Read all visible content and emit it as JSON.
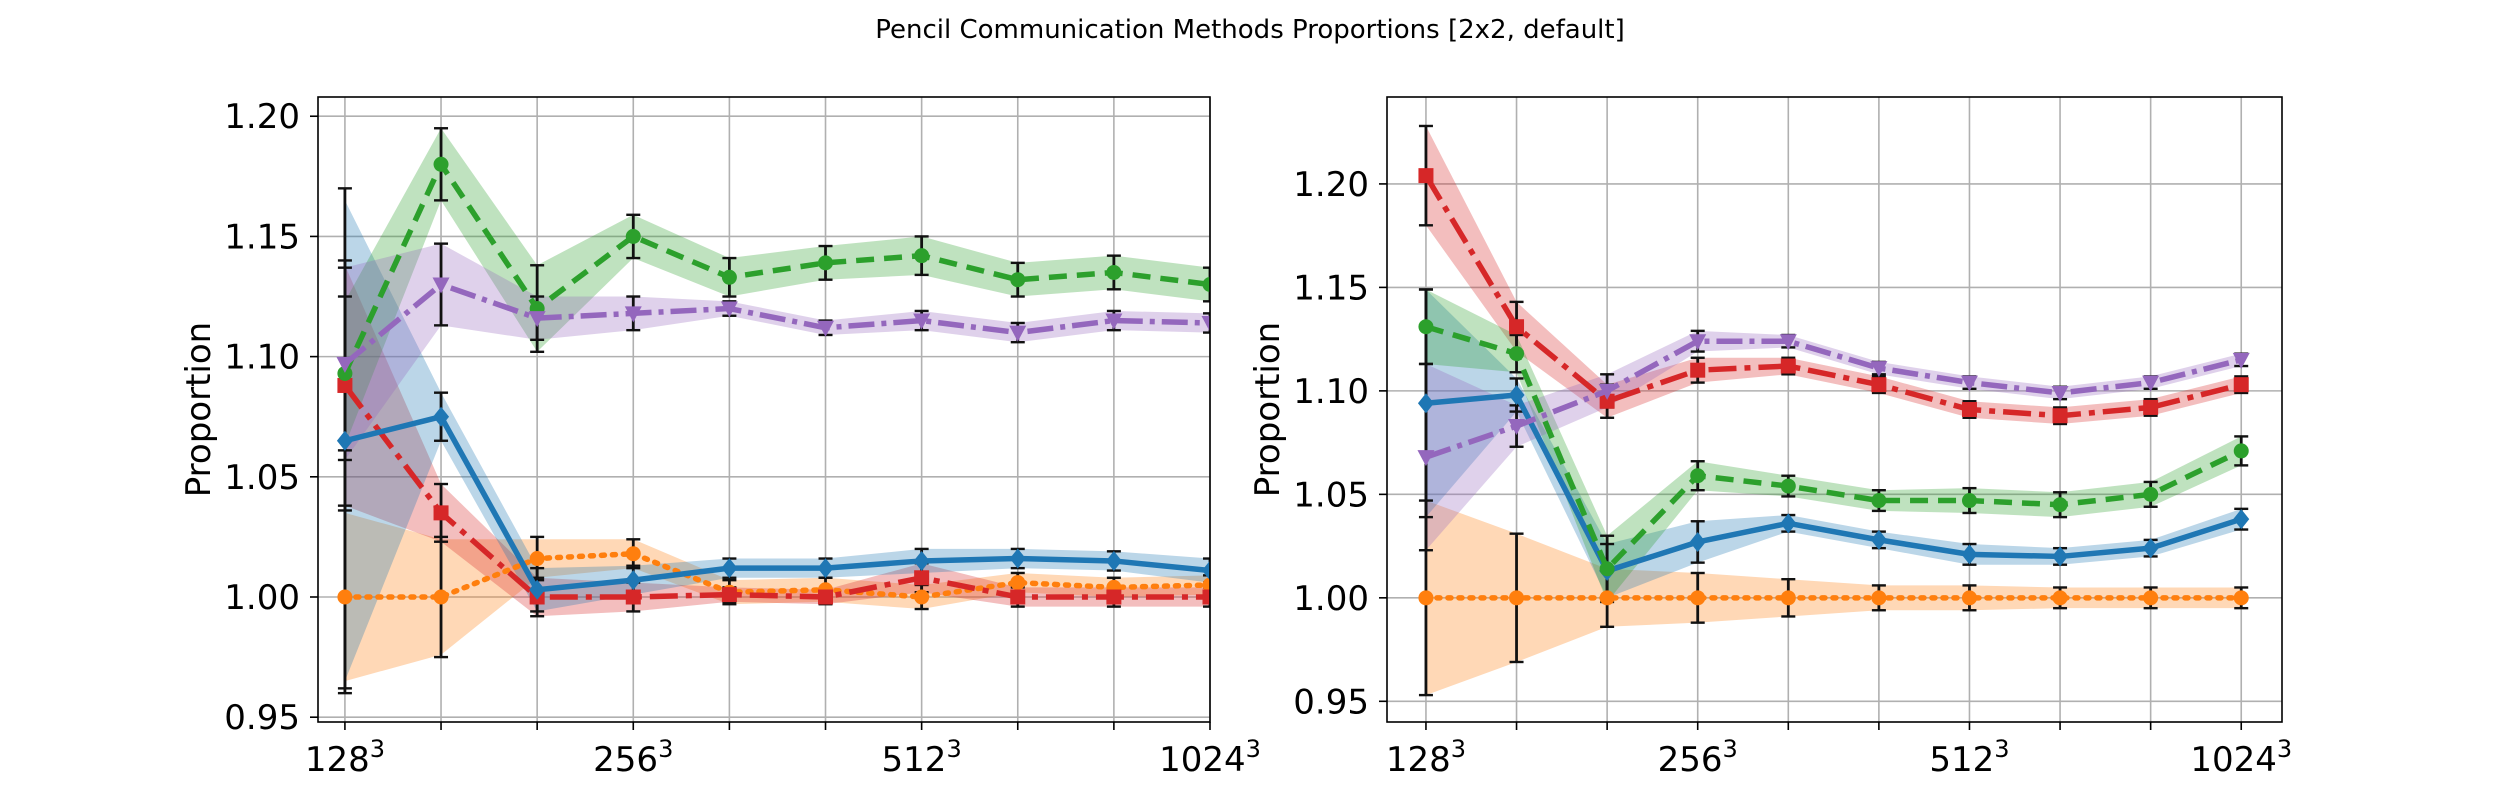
{
  "figure": {
    "title": "Pencil Communication Methods Proportions [2x2, default]"
  },
  "chart_data": [
    {
      "type": "line",
      "ylabel": "Proportion",
      "x": [
        1,
        2,
        3,
        4,
        5,
        6,
        7,
        8,
        9,
        10
      ],
      "xticks": [
        {
          "x": 1,
          "base": "128",
          "exp": "3"
        },
        {
          "x": 4,
          "base": "256",
          "exp": "3"
        },
        {
          "x": 7,
          "base": "512",
          "exp": "3"
        },
        {
          "x": 10,
          "base": "1024",
          "exp": "3"
        }
      ],
      "xlim": [
        0.72,
        10.0
      ],
      "ylim": [
        0.948,
        1.208
      ],
      "yticks": [
        0.95,
        1.0,
        1.05,
        1.1,
        1.15,
        1.2
      ],
      "ytick_labels": [
        "0.95",
        "1.00",
        "1.05",
        "1.10",
        "1.15",
        "1.20"
      ],
      "grid": true,
      "series": [
        {
          "color": "#ff7f0e",
          "dash": "3,8",
          "marker": "circle",
          "values": [
            1.0,
            1.0,
            1.016,
            1.018,
            1.002,
            1.003,
            1.0,
            1.006,
            1.004,
            1.005
          ],
          "band": [
            0.035,
            0.024,
            0.008,
            0.006,
            0.005,
            0.005,
            0.005,
            0.004,
            0.004,
            0.004
          ],
          "err": [
            0.038,
            0.025,
            0.009,
            0.006,
            0.005,
            0.005,
            0.005,
            0.004,
            0.004,
            0.004
          ]
        },
        {
          "color": "#d62728",
          "dash": "28,8,6,8",
          "marker": "square",
          "values": [
            1.088,
            1.035,
            1.0,
            1.0,
            1.001,
            1.0,
            1.008,
            1.0,
            1.0,
            1.0
          ],
          "band": [
            0.05,
            0.012,
            0.008,
            0.006,
            0.003,
            0.003,
            0.006,
            0.004,
            0.004,
            0.004
          ],
          "err": [
            0.052,
            0.012,
            0.008,
            0.006,
            0.003,
            0.003,
            0.006,
            0.004,
            0.004,
            0.004
          ]
        },
        {
          "color": "#1f77b4",
          "dash": "",
          "marker": "diamond",
          "values": [
            1.065,
            1.075,
            1.003,
            1.007,
            1.012,
            1.012,
            1.015,
            1.016,
            1.015,
            1.011
          ],
          "band": [
            0.1,
            0.01,
            0.009,
            0.006,
            0.004,
            0.004,
            0.005,
            0.004,
            0.004,
            0.005
          ],
          "err": [
            0.105,
            0.01,
            0.009,
            0.006,
            0.004,
            0.004,
            0.005,
            0.004,
            0.004,
            0.005
          ]
        },
        {
          "color": "#2ca02c",
          "dash": "18,10",
          "marker": "circle",
          "values": [
            1.093,
            1.18,
            1.12,
            1.15,
            1.133,
            1.139,
            1.142,
            1.132,
            1.135,
            1.13
          ],
          "band": [
            0.03,
            0.015,
            0.018,
            0.009,
            0.008,
            0.007,
            0.008,
            0.007,
            0.007,
            0.007
          ],
          "err": [
            0.032,
            0.015,
            0.018,
            0.009,
            0.008,
            0.007,
            0.008,
            0.007,
            0.007,
            0.007
          ]
        },
        {
          "color": "#9467bd",
          "dash": "26,7,5,7",
          "marker": "tri-down",
          "values": [
            1.097,
            1.13,
            1.116,
            1.118,
            1.12,
            1.112,
            1.115,
            1.11,
            1.115,
            1.114
          ],
          "band": [
            0.04,
            0.017,
            0.009,
            0.007,
            0.003,
            0.003,
            0.004,
            0.004,
            0.004,
            0.004
          ],
          "err": [
            0.04,
            0.017,
            0.009,
            0.007,
            0.003,
            0.003,
            0.004,
            0.004,
            0.004,
            0.004
          ]
        }
      ]
    },
    {
      "type": "line",
      "ylabel": "Proportion",
      "x": [
        1,
        2,
        3,
        4,
        5,
        6,
        7,
        8,
        9,
        10
      ],
      "xticks": [
        {
          "x": 1,
          "base": "128",
          "exp": "3"
        },
        {
          "x": 4,
          "base": "256",
          "exp": "3"
        },
        {
          "x": 7,
          "base": "512",
          "exp": "3"
        },
        {
          "x": 10,
          "base": "1024",
          "exp": "3"
        }
      ],
      "xlim": [
        0.57,
        10.45
      ],
      "ylim": [
        0.94,
        1.242
      ],
      "yticks": [
        0.95,
        1.0,
        1.05,
        1.1,
        1.15,
        1.2
      ],
      "ytick_labels": [
        "0.95",
        "1.00",
        "1.05",
        "1.10",
        "1.15",
        "1.20"
      ],
      "grid": true,
      "series": [
        {
          "color": "#ff7f0e",
          "dash": "3,8",
          "marker": "circle",
          "values": [
            1.0,
            1.0,
            1.0,
            1.0,
            1.0,
            1.0,
            1.0,
            1.0,
            1.0,
            1.0
          ],
          "band": [
            0.047,
            0.031,
            0.014,
            0.012,
            0.009,
            0.006,
            0.006,
            0.005,
            0.005,
            0.005
          ],
          "err": [
            0.047,
            0.031,
            0.014,
            0.012,
            0.009,
            0.006,
            0.006,
            0.005,
            0.005,
            0.005
          ]
        },
        {
          "color": "#d62728",
          "dash": "28,8,6,8",
          "marker": "square",
          "values": [
            1.204,
            1.131,
            1.095,
            1.11,
            1.112,
            1.103,
            1.091,
            1.088,
            1.092,
            1.103
          ],
          "band": [
            0.024,
            0.012,
            0.008,
            0.006,
            0.004,
            0.004,
            0.004,
            0.004,
            0.004,
            0.004
          ],
          "err": [
            0.024,
            0.012,
            0.008,
            0.006,
            0.004,
            0.004,
            0.004,
            0.004,
            0.004,
            0.004
          ]
        },
        {
          "color": "#1f77b4",
          "dash": "",
          "marker": "diamond",
          "values": [
            1.094,
            1.098,
            1.013,
            1.027,
            1.036,
            1.028,
            1.021,
            1.02,
            1.024,
            1.038
          ],
          "band": [
            0.055,
            0.008,
            0.013,
            0.01,
            0.004,
            0.004,
            0.005,
            0.004,
            0.004,
            0.005
          ],
          "err": [
            0.055,
            0.008,
            0.013,
            0.01,
            0.004,
            0.004,
            0.005,
            0.004,
            0.004,
            0.005
          ]
        },
        {
          "color": "#2ca02c",
          "dash": "18,10",
          "marker": "circle",
          "values": [
            1.131,
            1.118,
            1.014,
            1.059,
            1.054,
            1.047,
            1.047,
            1.045,
            1.05,
            1.071
          ],
          "band": [
            0.018,
            0.009,
            0.016,
            0.007,
            0.005,
            0.005,
            0.006,
            0.006,
            0.006,
            0.007
          ],
          "err": [
            0.018,
            0.009,
            0.016,
            0.007,
            0.005,
            0.005,
            0.006,
            0.006,
            0.006,
            0.007
          ]
        },
        {
          "color": "#9467bd",
          "dash": "26,7,5,7",
          "marker": "tri-down",
          "values": [
            1.068,
            1.083,
            1.1,
            1.124,
            1.124,
            1.111,
            1.104,
            1.099,
            1.104,
            1.115
          ],
          "band": [
            0.045,
            0.01,
            0.008,
            0.005,
            0.003,
            0.003,
            0.003,
            0.003,
            0.003,
            0.003
          ],
          "err": [
            0.045,
            0.01,
            0.008,
            0.005,
            0.003,
            0.003,
            0.003,
            0.003,
            0.003,
            0.003
          ]
        }
      ]
    }
  ]
}
